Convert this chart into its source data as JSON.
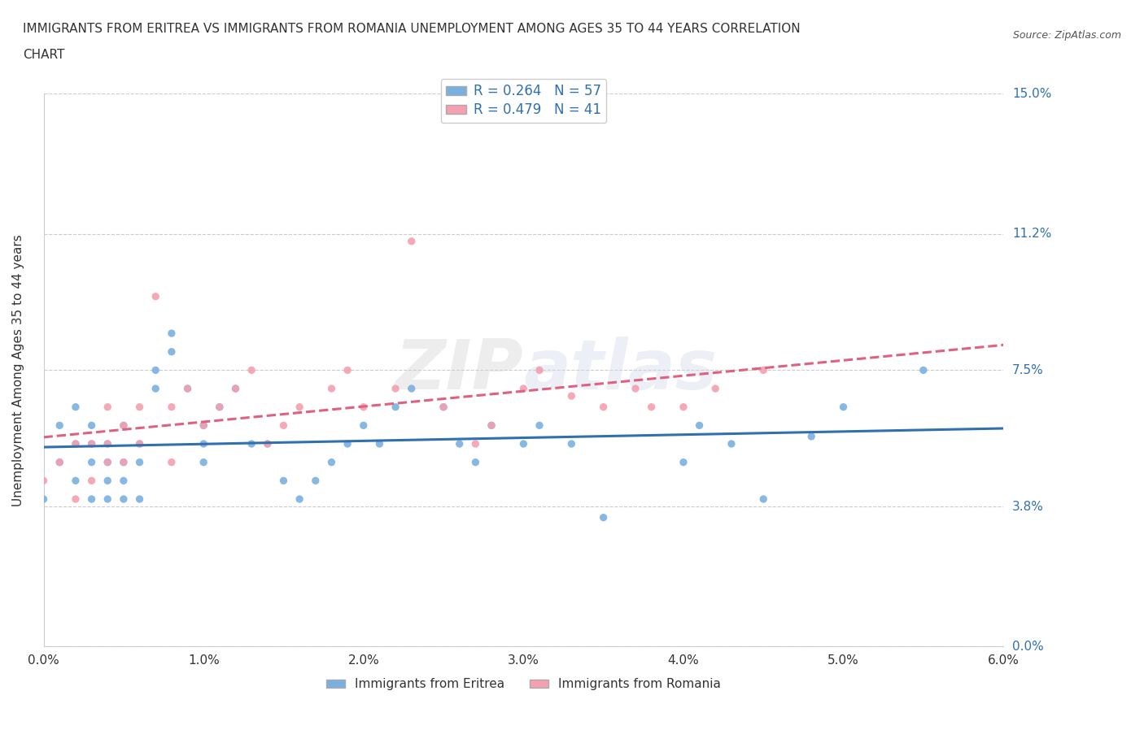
{
  "title_line1": "IMMIGRANTS FROM ERITREA VS IMMIGRANTS FROM ROMANIA UNEMPLOYMENT AMONG AGES 35 TO 44 YEARS CORRELATION",
  "title_line2": "CHART",
  "source": "Source: ZipAtlas.com",
  "xlabel": "",
  "ylabel": "Unemployment Among Ages 35 to 44 years",
  "xmin": 0.0,
  "xmax": 0.06,
  "ymin": 0.0,
  "ymax": 0.15,
  "yticks": [
    0.0,
    0.038,
    0.075,
    0.112,
    0.15
  ],
  "ytick_labels": [
    "0.0%",
    "3.8%",
    "7.5%",
    "11.2%",
    "15.0%"
  ],
  "xticks": [
    0.0,
    0.01,
    0.02,
    0.03,
    0.04,
    0.05,
    0.06
  ],
  "xtick_labels": [
    "0.0%",
    "1.0%",
    "2.0%",
    "3.0%",
    "4.0%",
    "5.0%",
    "6.0%"
  ],
  "eritrea_color": "#7ab0e0",
  "romania_color": "#f4a0b0",
  "eritrea_line_color": "#3070b0",
  "romania_line_color": "#e06080",
  "grid_color": "#cccccc",
  "watermark_zip": "ZIP",
  "watermark_atlas": "atlas",
  "legend_eritrea": "R = 0.264   N = 57",
  "legend_romania": "R = 0.479   N = 41",
  "legend_label1": "Immigrants from Eritrea",
  "legend_label2": "Immigrants from Romania",
  "eritrea_R": 0.264,
  "eritrea_N": 57,
  "romania_R": 0.479,
  "romania_N": 41,
  "eritrea_x": [
    0.0,
    0.001,
    0.001,
    0.002,
    0.002,
    0.002,
    0.003,
    0.003,
    0.003,
    0.003,
    0.004,
    0.004,
    0.004,
    0.004,
    0.005,
    0.005,
    0.005,
    0.005,
    0.006,
    0.006,
    0.006,
    0.007,
    0.007,
    0.008,
    0.008,
    0.009,
    0.01,
    0.01,
    0.01,
    0.011,
    0.012,
    0.013,
    0.014,
    0.015,
    0.016,
    0.017,
    0.018,
    0.019,
    0.02,
    0.021,
    0.022,
    0.023,
    0.025,
    0.026,
    0.027,
    0.028,
    0.03,
    0.031,
    0.033,
    0.035,
    0.04,
    0.041,
    0.043,
    0.045,
    0.048,
    0.05,
    0.055
  ],
  "eritrea_y": [
    0.04,
    0.05,
    0.06,
    0.045,
    0.055,
    0.065,
    0.04,
    0.05,
    0.055,
    0.06,
    0.04,
    0.045,
    0.05,
    0.055,
    0.04,
    0.045,
    0.05,
    0.06,
    0.04,
    0.05,
    0.055,
    0.07,
    0.075,
    0.08,
    0.085,
    0.07,
    0.05,
    0.055,
    0.06,
    0.065,
    0.07,
    0.055,
    0.055,
    0.045,
    0.04,
    0.045,
    0.05,
    0.055,
    0.06,
    0.055,
    0.065,
    0.07,
    0.065,
    0.055,
    0.05,
    0.06,
    0.055,
    0.06,
    0.055,
    0.035,
    0.05,
    0.06,
    0.055,
    0.04,
    0.057,
    0.065,
    0.075
  ],
  "romania_x": [
    0.0,
    0.001,
    0.002,
    0.002,
    0.003,
    0.003,
    0.004,
    0.004,
    0.004,
    0.005,
    0.005,
    0.006,
    0.006,
    0.007,
    0.008,
    0.008,
    0.009,
    0.01,
    0.011,
    0.012,
    0.013,
    0.014,
    0.015,
    0.016,
    0.018,
    0.019,
    0.02,
    0.022,
    0.023,
    0.025,
    0.027,
    0.028,
    0.03,
    0.031,
    0.033,
    0.035,
    0.037,
    0.038,
    0.04,
    0.042,
    0.045
  ],
  "romania_y": [
    0.045,
    0.05,
    0.04,
    0.055,
    0.045,
    0.055,
    0.05,
    0.055,
    0.065,
    0.05,
    0.06,
    0.055,
    0.065,
    0.095,
    0.05,
    0.065,
    0.07,
    0.06,
    0.065,
    0.07,
    0.075,
    0.055,
    0.06,
    0.065,
    0.07,
    0.075,
    0.065,
    0.07,
    0.11,
    0.065,
    0.055,
    0.06,
    0.07,
    0.075,
    0.068,
    0.065,
    0.07,
    0.065,
    0.065,
    0.07,
    0.075
  ]
}
